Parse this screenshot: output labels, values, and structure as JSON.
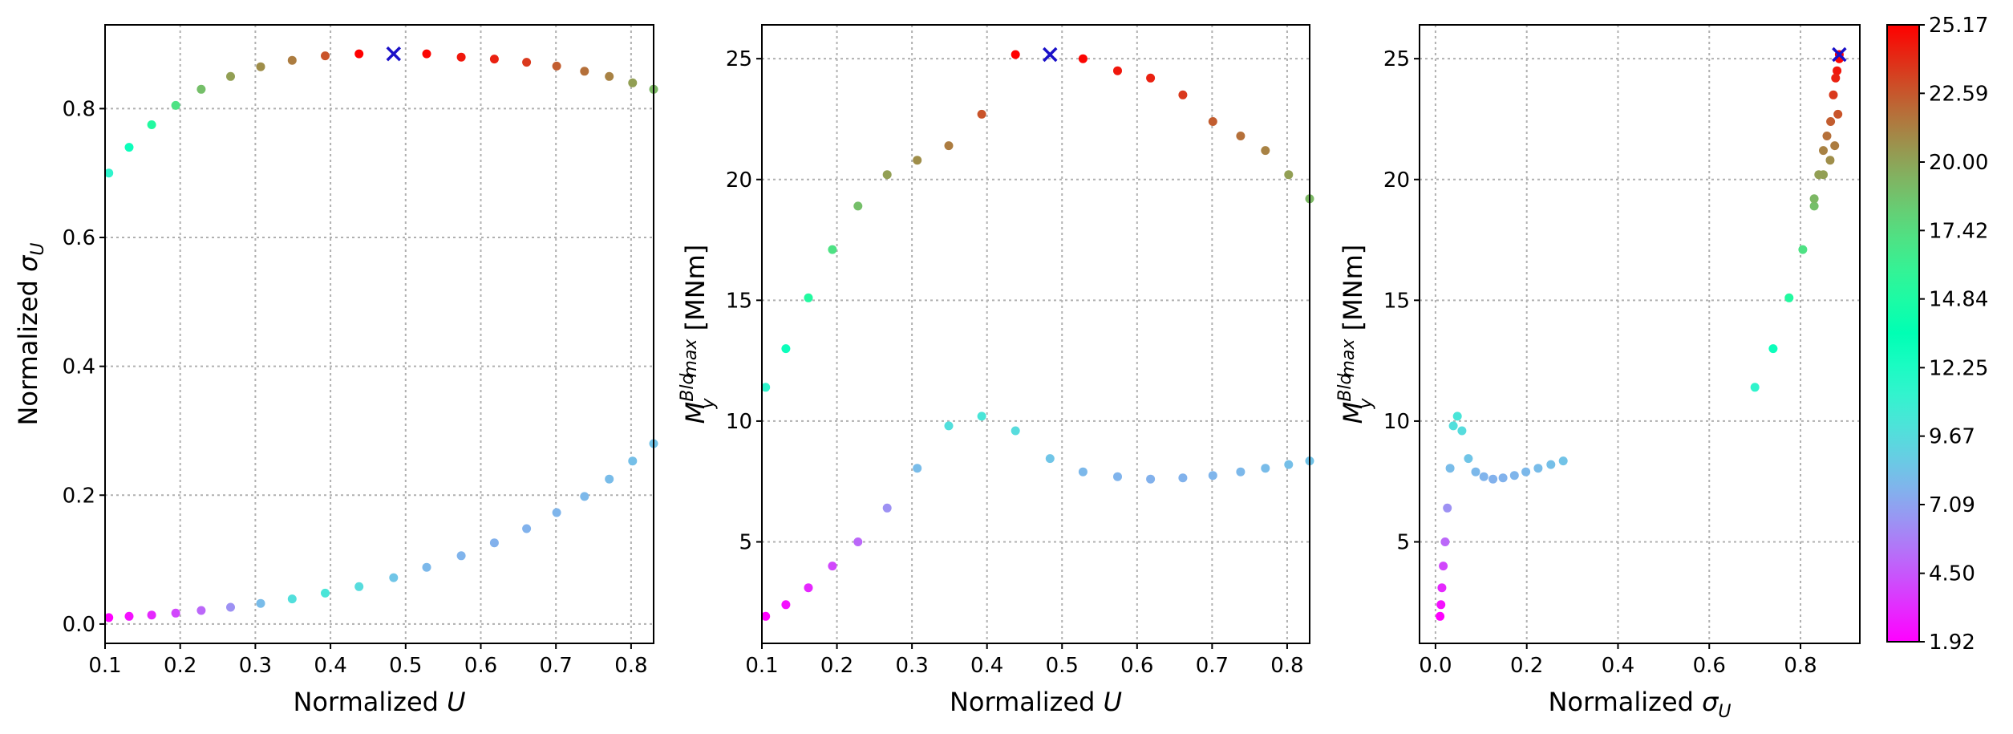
{
  "chart_data": [
    {
      "type": "scatter",
      "xlabel_parts": {
        "text": "Normalized ",
        "symbol": "U",
        "sub": ""
      },
      "ylabel_parts": {
        "text": "Normalized ",
        "symbol": "σ",
        "sub": "U"
      },
      "xlim": [
        0.1,
        0.83
      ],
      "ylim": [
        -0.03,
        0.93
      ],
      "xticks": [
        0.1,
        0.2,
        0.3,
        0.4,
        0.5,
        0.6,
        0.7,
        0.8
      ],
      "yticks": [
        0.0,
        0.2,
        0.4,
        0.6,
        0.8
      ],
      "xtick_labels": [
        "0.1",
        "0.2",
        "0.3",
        "0.4",
        "0.5",
        "0.6",
        "0.7",
        "0.8"
      ],
      "ytick_labels": [
        "0.0",
        "0.2",
        "0.4",
        "0.6",
        "0.8"
      ],
      "grid": true,
      "series": [
        {
          "x": [
            0.105,
            0.132,
            0.162,
            0.194,
            0.228,
            0.267,
            0.307,
            0.349,
            0.393,
            0.438,
            0.528,
            0.574,
            0.618,
            0.661,
            0.701,
            0.738,
            0.771,
            0.802,
            0.83
          ],
          "y": [
            0.7,
            0.74,
            0.775,
            0.805,
            0.83,
            0.85,
            0.865,
            0.875,
            0.882,
            0.885,
            0.885,
            0.88,
            0.877,
            0.872,
            0.866,
            0.858,
            0.85,
            0.84,
            0.83
          ],
          "color_values": [
            11.4,
            13.0,
            15.1,
            17.1,
            18.9,
            20.2,
            20.8,
            21.4,
            22.7,
            25.17,
            25.0,
            24.5,
            24.2,
            23.5,
            22.4,
            21.8,
            21.2,
            20.2,
            19.2
          ]
        },
        {
          "x": [
            0.105,
            0.132,
            0.162,
            0.194,
            0.228,
            0.267,
            0.307,
            0.349,
            0.393,
            0.438,
            0.484,
            0.528,
            0.574,
            0.618,
            0.661,
            0.701,
            0.738,
            0.771,
            0.802,
            0.83
          ],
          "y": [
            0.01,
            0.012,
            0.014,
            0.017,
            0.021,
            0.026,
            0.032,
            0.039,
            0.048,
            0.058,
            0.072,
            0.088,
            0.106,
            0.126,
            0.148,
            0.173,
            0.198,
            0.225,
            0.253,
            0.28
          ],
          "color_values": [
            1.92,
            2.4,
            3.1,
            4.0,
            5.0,
            6.4,
            8.05,
            9.8,
            10.2,
            9.6,
            8.45,
            7.9,
            7.7,
            7.6,
            7.65,
            7.75,
            7.9,
            8.05,
            8.2,
            8.35
          ]
        }
      ],
      "marker": {
        "x": 0.484,
        "y": 0.885,
        "symbol": "x",
        "color": "#1a10c8"
      }
    },
    {
      "type": "scatter",
      "xlabel_parts": {
        "text": "Normalized ",
        "symbol": "U",
        "sub": ""
      },
      "ylabel_parts": {
        "symbol": "M",
        "sub": "y",
        "sup": "Bld",
        "sub2": "max",
        "unit": " [MNm]"
      },
      "xlim": [
        0.1,
        0.83
      ],
      "ylim": [
        0.8,
        26.4
      ],
      "xticks": [
        0.1,
        0.2,
        0.3,
        0.4,
        0.5,
        0.6,
        0.7,
        0.8
      ],
      "yticks": [
        5,
        10,
        15,
        20,
        25
      ],
      "xtick_labels": [
        "0.1",
        "0.2",
        "0.3",
        "0.4",
        "0.5",
        "0.6",
        "0.7",
        "0.8"
      ],
      "ytick_labels": [
        "5",
        "10",
        "15",
        "20",
        "25"
      ],
      "grid": true,
      "series": [
        {
          "x": [
            0.105,
            0.132,
            0.162,
            0.194,
            0.228,
            0.267,
            0.307,
            0.349,
            0.393,
            0.438,
            0.528,
            0.574,
            0.618,
            0.661,
            0.701,
            0.738,
            0.771,
            0.802,
            0.83
          ],
          "y": [
            11.4,
            13.0,
            15.1,
            17.1,
            18.9,
            20.2,
            20.8,
            21.4,
            22.7,
            25.17,
            25.0,
            24.5,
            24.2,
            23.5,
            22.4,
            21.8,
            21.2,
            20.2,
            19.2
          ],
          "color_values": [
            11.4,
            13.0,
            15.1,
            17.1,
            18.9,
            20.2,
            20.8,
            21.4,
            22.7,
            25.17,
            25.0,
            24.5,
            24.2,
            23.5,
            22.4,
            21.8,
            21.2,
            20.2,
            19.2
          ]
        },
        {
          "x": [
            0.105,
            0.132,
            0.162,
            0.194,
            0.228,
            0.267,
            0.307,
            0.349,
            0.393,
            0.438,
            0.484,
            0.528,
            0.574,
            0.618,
            0.661,
            0.701,
            0.738,
            0.771,
            0.802,
            0.83
          ],
          "y": [
            1.92,
            2.4,
            3.1,
            4.0,
            5.0,
            6.4,
            8.05,
            9.8,
            10.2,
            9.6,
            8.45,
            7.9,
            7.7,
            7.6,
            7.65,
            7.75,
            7.9,
            8.05,
            8.2,
            8.35
          ],
          "color_values": [
            1.92,
            2.4,
            3.1,
            4.0,
            5.0,
            6.4,
            8.05,
            9.8,
            10.2,
            9.6,
            8.45,
            7.9,
            7.7,
            7.6,
            7.65,
            7.75,
            7.9,
            8.05,
            8.2,
            8.35
          ]
        }
      ],
      "marker": {
        "x": 0.484,
        "y": 25.17,
        "symbol": "x",
        "color": "#1a10c8"
      }
    },
    {
      "type": "scatter",
      "xlabel_parts": {
        "text": "Normalized ",
        "symbol": "σ",
        "sub": "U"
      },
      "ylabel_parts": {
        "symbol": "M",
        "sub": "y",
        "sup": "Bld",
        "sub2": "max",
        "unit": " [MNm]"
      },
      "xlim": [
        -0.035,
        0.93
      ],
      "ylim": [
        0.8,
        26.4
      ],
      "xticks": [
        0.0,
        0.2,
        0.4,
        0.6,
        0.8
      ],
      "yticks": [
        5,
        10,
        15,
        20,
        25
      ],
      "xtick_labels": [
        "0.0",
        "0.2",
        "0.4",
        "0.6",
        "0.8"
      ],
      "ytick_labels": [
        "5",
        "10",
        "15",
        "20",
        "25"
      ],
      "grid": true,
      "series": [
        {
          "x": [
            0.7,
            0.74,
            0.775,
            0.805,
            0.83,
            0.85,
            0.865,
            0.875,
            0.882,
            0.885,
            0.885,
            0.88,
            0.877,
            0.872,
            0.866,
            0.858,
            0.85,
            0.84,
            0.83
          ],
          "y": [
            11.4,
            13.0,
            15.1,
            17.1,
            18.9,
            20.2,
            20.8,
            21.4,
            22.7,
            25.17,
            25.0,
            24.5,
            24.2,
            23.5,
            22.4,
            21.8,
            21.2,
            20.2,
            19.2
          ],
          "color_values": [
            11.4,
            13.0,
            15.1,
            17.1,
            18.9,
            20.2,
            20.8,
            21.4,
            22.7,
            25.17,
            25.0,
            24.5,
            24.2,
            23.5,
            22.4,
            21.8,
            21.2,
            20.2,
            19.2
          ]
        },
        {
          "x": [
            0.01,
            0.012,
            0.014,
            0.017,
            0.021,
            0.026,
            0.032,
            0.039,
            0.048,
            0.058,
            0.072,
            0.088,
            0.106,
            0.126,
            0.148,
            0.173,
            0.198,
            0.225,
            0.253,
            0.28
          ],
          "y": [
            1.92,
            2.4,
            3.1,
            4.0,
            5.0,
            6.4,
            8.05,
            9.8,
            10.2,
            9.6,
            8.45,
            7.9,
            7.7,
            7.6,
            7.65,
            7.75,
            7.9,
            8.05,
            8.2,
            8.35
          ],
          "color_values": [
            1.92,
            2.4,
            3.1,
            4.0,
            5.0,
            6.4,
            8.05,
            9.8,
            10.2,
            9.6,
            8.45,
            7.9,
            7.7,
            7.6,
            7.65,
            7.75,
            7.9,
            8.05,
            8.2,
            8.35
          ]
        }
      ],
      "marker": {
        "x": 0.885,
        "y": 25.17,
        "symbol": "x",
        "color": "#1a10c8"
      }
    }
  ],
  "colorbar": {
    "colormap": "rainbow",
    "range": [
      1.92,
      25.17
    ],
    "ticks": [
      1.92,
      4.5,
      7.09,
      9.67,
      12.25,
      14.84,
      17.42,
      20.0,
      22.59,
      25.17
    ],
    "tick_labels": [
      "1.92",
      "4.50",
      "7.09",
      "9.67",
      "12.25",
      "14.84",
      "17.42",
      "20.00",
      "22.59",
      "25.17"
    ]
  }
}
